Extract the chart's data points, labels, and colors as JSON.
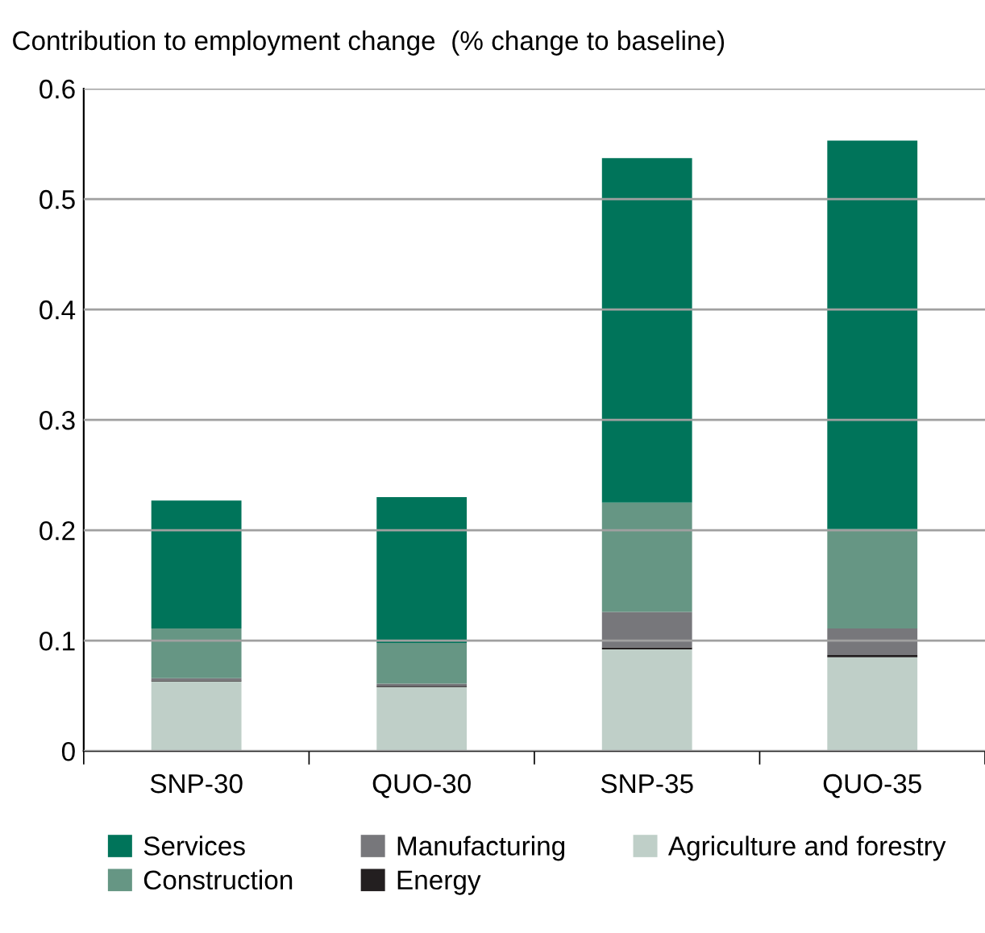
{
  "chart_data": {
    "type": "bar",
    "stacked": true,
    "ylabel": "Contribution to employment change  (% change to baseline)",
    "categories": [
      "SNP-30",
      "QUO-30",
      "SNP-35",
      "QUO-35"
    ],
    "series": [
      {
        "name": "Agriculture and forestry",
        "color": "#bfcfc8",
        "values": [
          0.063,
          0.058,
          0.092,
          0.085
        ]
      },
      {
        "name": "Energy",
        "color": "#231f20",
        "values": [
          0.001,
          0.001,
          0.002,
          0.002
        ]
      },
      {
        "name": "Manufacturing",
        "color": "#77777b",
        "values": [
          0.002,
          0.002,
          0.032,
          0.024
        ]
      },
      {
        "name": "Construction",
        "color": "#669684",
        "values": [
          0.045,
          0.037,
          0.099,
          0.09
        ]
      },
      {
        "name": "Services",
        "color": "#00745a",
        "values": [
          0.116,
          0.132,
          0.312,
          0.352
        ]
      }
    ],
    "ylim": [
      0,
      0.6
    ],
    "yticks": [
      {
        "value": 0,
        "label": "0"
      },
      0.1,
      0.2,
      0.3,
      0.4,
      0.5,
      0.6
    ],
    "grid": "y",
    "legend": "bottom"
  }
}
